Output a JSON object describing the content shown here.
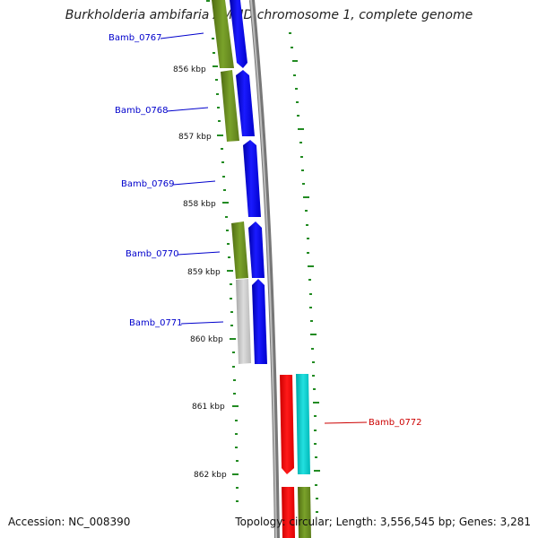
{
  "title": "Burkholderia ambifaria AMMD chromosome 1, complete genome",
  "accession": "Accession: NC_008390",
  "topology": "Topology: circular; Length: 3,556,545 bp; Genes: 3,281",
  "kbp_labels": [
    "856 kbp",
    "857 kbp",
    "858 kbp",
    "859 kbp",
    "860 kbp",
    "861 kbp",
    "862 kbp"
  ],
  "gene_labels": [
    "Bamb_0767",
    "Bamb_0768",
    "Bamb_0769",
    "Bamb_0770",
    "Bamb_0771",
    "Bamb_0772"
  ],
  "colors": {
    "blue_gene": "#0000ee",
    "olive_gene": "#6b8e23",
    "gray_gene": "#c0c0c0",
    "red_gene": "#ee0000",
    "cyan_gene": "#00cccc",
    "tick_green": "#228b22",
    "backbone": "#888888",
    "label_blue": "#0000cc",
    "label_red": "#cc0000"
  }
}
